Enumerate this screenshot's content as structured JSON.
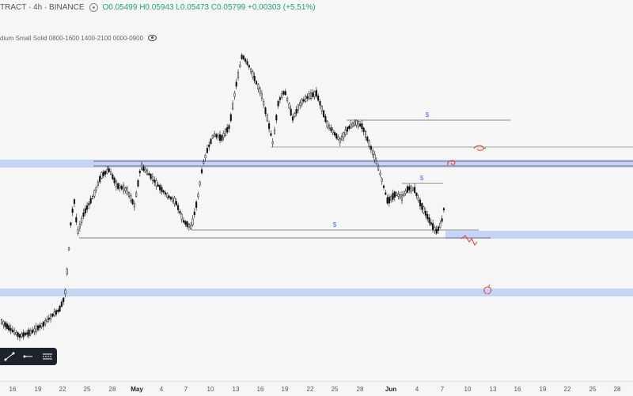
{
  "header": {
    "symbol": "TRACT · 4h · BINANCE",
    "ohlc": "O0.05499 H0.05943 L0.05473 C0.05799 +0.00303 (+5.51%)"
  },
  "indicator": {
    "label": "dium Small Solid 0800-1600 1400-2100 0000-0900"
  },
  "chart_data": {
    "type": "candlestick",
    "description_labels": [
      "$",
      "$",
      "$"
    ],
    "dates": [
      "16",
      "19",
      "22",
      "25",
      "28",
      "May",
      "4",
      "7",
      "10",
      "13",
      "16",
      "19",
      "22",
      "25",
      "28",
      "Jun",
      "4",
      "7",
      "10",
      "13",
      "16",
      "19",
      "22",
      "25",
      "28"
    ],
    "grid": false
  },
  "zones": [
    {
      "name": "upper-zone",
      "color": "#c5d3f7"
    },
    {
      "name": "mid-zone",
      "color": "#c5d3f7"
    },
    {
      "name": "lower-zone",
      "color": "#c5d3f7"
    }
  ],
  "toolbar": {
    "tools": [
      "trendline-icon",
      "horizontal-line-icon",
      "settings-lines-icon"
    ]
  },
  "colors": {
    "background": "#f6f6f6",
    "candle": "#111111",
    "zone": "#c5d3f7",
    "liquidity_label": "#4a6cf7",
    "annotation": "#e53935",
    "green_line": "#6b9a6b"
  }
}
